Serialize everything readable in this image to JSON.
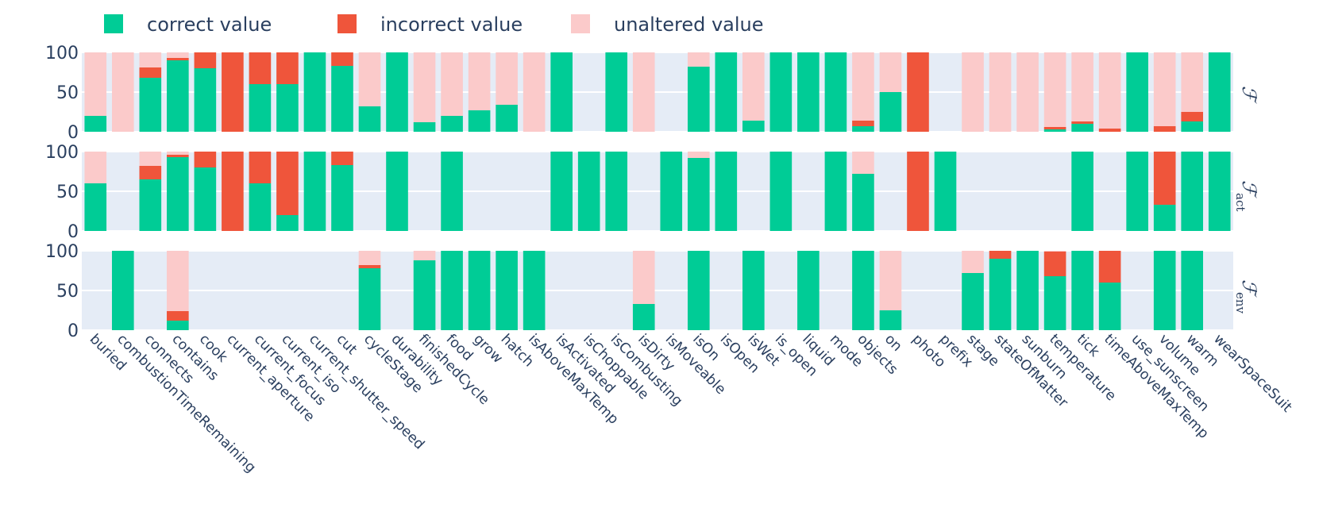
{
  "chart_data": {
    "type": "bar",
    "stacked": true,
    "colors": {
      "correct": "#00cc96",
      "incorrect": "#ef553b",
      "unaltered": "#fbcaca",
      "plot_bg": "#e5ecf6"
    },
    "legend": {
      "position": "top-left",
      "items": [
        "correct value",
        "incorrect value",
        "unaltered value"
      ]
    },
    "ylim": [
      0,
      100
    ],
    "yticks": [
      "0",
      "50",
      "100"
    ],
    "categories": [
      "buried",
      "combustionTimeRemaining",
      "connects",
      "contains",
      "cook",
      "current_aperture",
      "current_focus",
      "current_iso",
      "current_shutter_speed",
      "cut",
      "cycleStage",
      "durability",
      "finishedCycle",
      "food",
      "grow",
      "hatch",
      "isAboveMaxTemp",
      "isActivated",
      "isChoppable",
      "isCombusting",
      "isDirty",
      "isMoveable",
      "isOn",
      "isOpen",
      "isWet",
      "is_open",
      "liquid",
      "mode",
      "objects",
      "on",
      "photo",
      "prefix",
      "stage",
      "stateOfMatter",
      "sunburn",
      "temperature",
      "tick",
      "timeAboveMaxTemp",
      "use_sunscreen",
      "volume",
      "warm",
      "wearSpaceSuit"
    ],
    "panels": [
      {
        "label": "ℱ",
        "subscript": "",
        "correct": [
          20,
          0,
          68,
          90,
          80,
          0,
          60,
          60,
          100,
          83,
          32,
          100,
          12,
          20,
          27,
          34,
          0,
          100,
          null,
          100,
          0,
          null,
          82,
          100,
          14,
          100,
          100,
          100,
          7,
          50,
          0,
          null,
          0,
          0,
          0,
          3,
          10,
          0,
          100,
          0,
          13,
          100
        ],
        "incorrect": [
          0,
          0,
          13,
          3,
          20,
          100,
          40,
          40,
          0,
          17,
          0,
          0,
          0,
          0,
          0,
          0,
          0,
          0,
          null,
          0,
          0,
          null,
          0,
          0,
          0,
          0,
          0,
          0,
          7,
          0,
          100,
          null,
          0,
          0,
          0,
          3,
          3,
          4,
          0,
          7,
          12,
          0
        ],
        "unaltered": [
          80,
          100,
          19,
          7,
          0,
          0,
          0,
          0,
          0,
          0,
          68,
          0,
          88,
          80,
          73,
          66,
          100,
          0,
          null,
          0,
          100,
          null,
          18,
          0,
          86,
          0,
          0,
          0,
          86,
          50,
          0,
          null,
          100,
          100,
          100,
          94,
          87,
          96,
          0,
          93,
          75,
          0
        ]
      },
      {
        "label": "ℱ",
        "subscript": "act",
        "correct": [
          60,
          null,
          65,
          93,
          80,
          0,
          60,
          20,
          100,
          83,
          null,
          100,
          null,
          100,
          null,
          null,
          null,
          100,
          100,
          100,
          null,
          100,
          92,
          100,
          null,
          100,
          null,
          100,
          72,
          null,
          0,
          100,
          null,
          null,
          null,
          null,
          100,
          null,
          100,
          33,
          100,
          100
        ],
        "incorrect": [
          0,
          null,
          17,
          3,
          20,
          100,
          40,
          80,
          0,
          17,
          null,
          0,
          null,
          0,
          null,
          null,
          null,
          0,
          0,
          0,
          null,
          0,
          0,
          0,
          null,
          0,
          null,
          0,
          0,
          null,
          100,
          0,
          null,
          null,
          null,
          null,
          0,
          null,
          0,
          67,
          0,
          0
        ],
        "unaltered": [
          40,
          null,
          18,
          4,
          0,
          0,
          0,
          0,
          0,
          0,
          null,
          0,
          null,
          0,
          null,
          null,
          null,
          0,
          0,
          0,
          null,
          0,
          8,
          0,
          null,
          0,
          null,
          0,
          28,
          null,
          0,
          0,
          null,
          null,
          null,
          null,
          0,
          null,
          0,
          0,
          0,
          0
        ]
      },
      {
        "label": "ℱ",
        "subscript": "env",
        "correct": [
          null,
          100,
          null,
          12,
          null,
          null,
          null,
          null,
          null,
          null,
          78,
          null,
          88,
          100,
          100,
          100,
          100,
          null,
          null,
          null,
          33,
          null,
          100,
          null,
          100,
          null,
          100,
          null,
          100,
          25,
          null,
          null,
          72,
          90,
          100,
          68,
          100,
          60,
          null,
          100,
          100,
          null
        ],
        "incorrect": [
          null,
          0,
          null,
          12,
          null,
          null,
          null,
          null,
          null,
          null,
          4,
          null,
          0,
          0,
          0,
          0,
          0,
          null,
          null,
          null,
          0,
          null,
          0,
          null,
          0,
          null,
          0,
          null,
          0,
          0,
          null,
          null,
          0,
          10,
          0,
          31,
          0,
          40,
          null,
          0,
          0,
          null
        ],
        "unaltered": [
          null,
          0,
          null,
          76,
          null,
          null,
          null,
          null,
          null,
          null,
          18,
          null,
          12,
          0,
          0,
          0,
          0,
          null,
          null,
          null,
          67,
          null,
          0,
          null,
          0,
          null,
          0,
          null,
          0,
          75,
          null,
          null,
          28,
          0,
          0,
          1,
          0,
          0,
          null,
          0,
          0,
          null
        ]
      }
    ]
  }
}
